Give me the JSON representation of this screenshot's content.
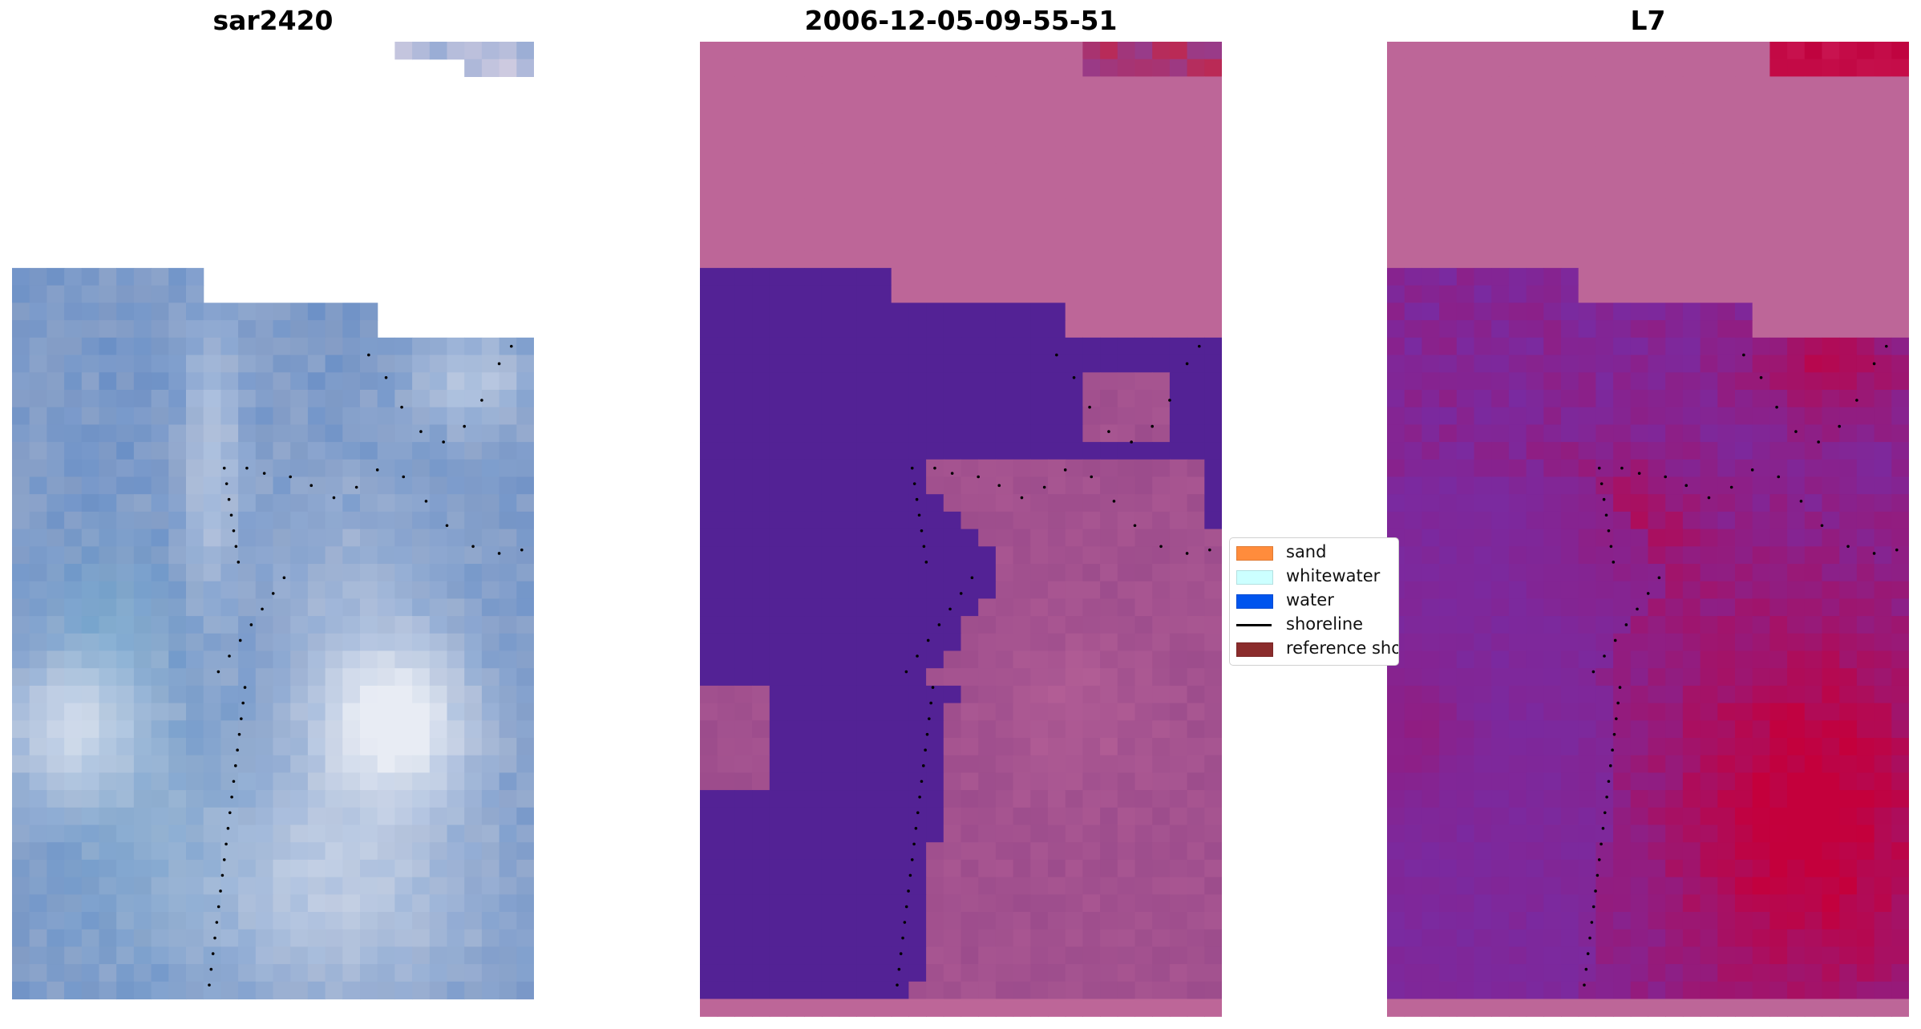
{
  "panels": [
    {
      "title": "sar2420",
      "kind": "rgb"
    },
    {
      "title": "2006-12-05-09-55-51",
      "kind": "classified"
    },
    {
      "title": "L7",
      "kind": "probability"
    }
  ],
  "legend": {
    "items": [
      {
        "label": "sand",
        "color": "#ff8c3c",
        "type": "patch"
      },
      {
        "label": "whitewater",
        "color": "#ccffff",
        "type": "patch"
      },
      {
        "label": "water",
        "color": "#0055ee",
        "type": "patch"
      },
      {
        "label": "shoreline",
        "color": "#000000",
        "type": "line"
      },
      {
        "label": "reference shoreline",
        "color": "#8b2c2c",
        "type": "patch"
      }
    ]
  },
  "colors": {
    "masked_pink": "#bd6698",
    "classified_water": "#532295",
    "classified_sand_overlay": "#9c4c8c",
    "prob_low": "#7a2aa0",
    "prob_high": "#c4003c",
    "rgb_blue": "#6a8fc6",
    "rgb_white": "#e8ecf4",
    "shoreline_dots": "#000000"
  }
}
